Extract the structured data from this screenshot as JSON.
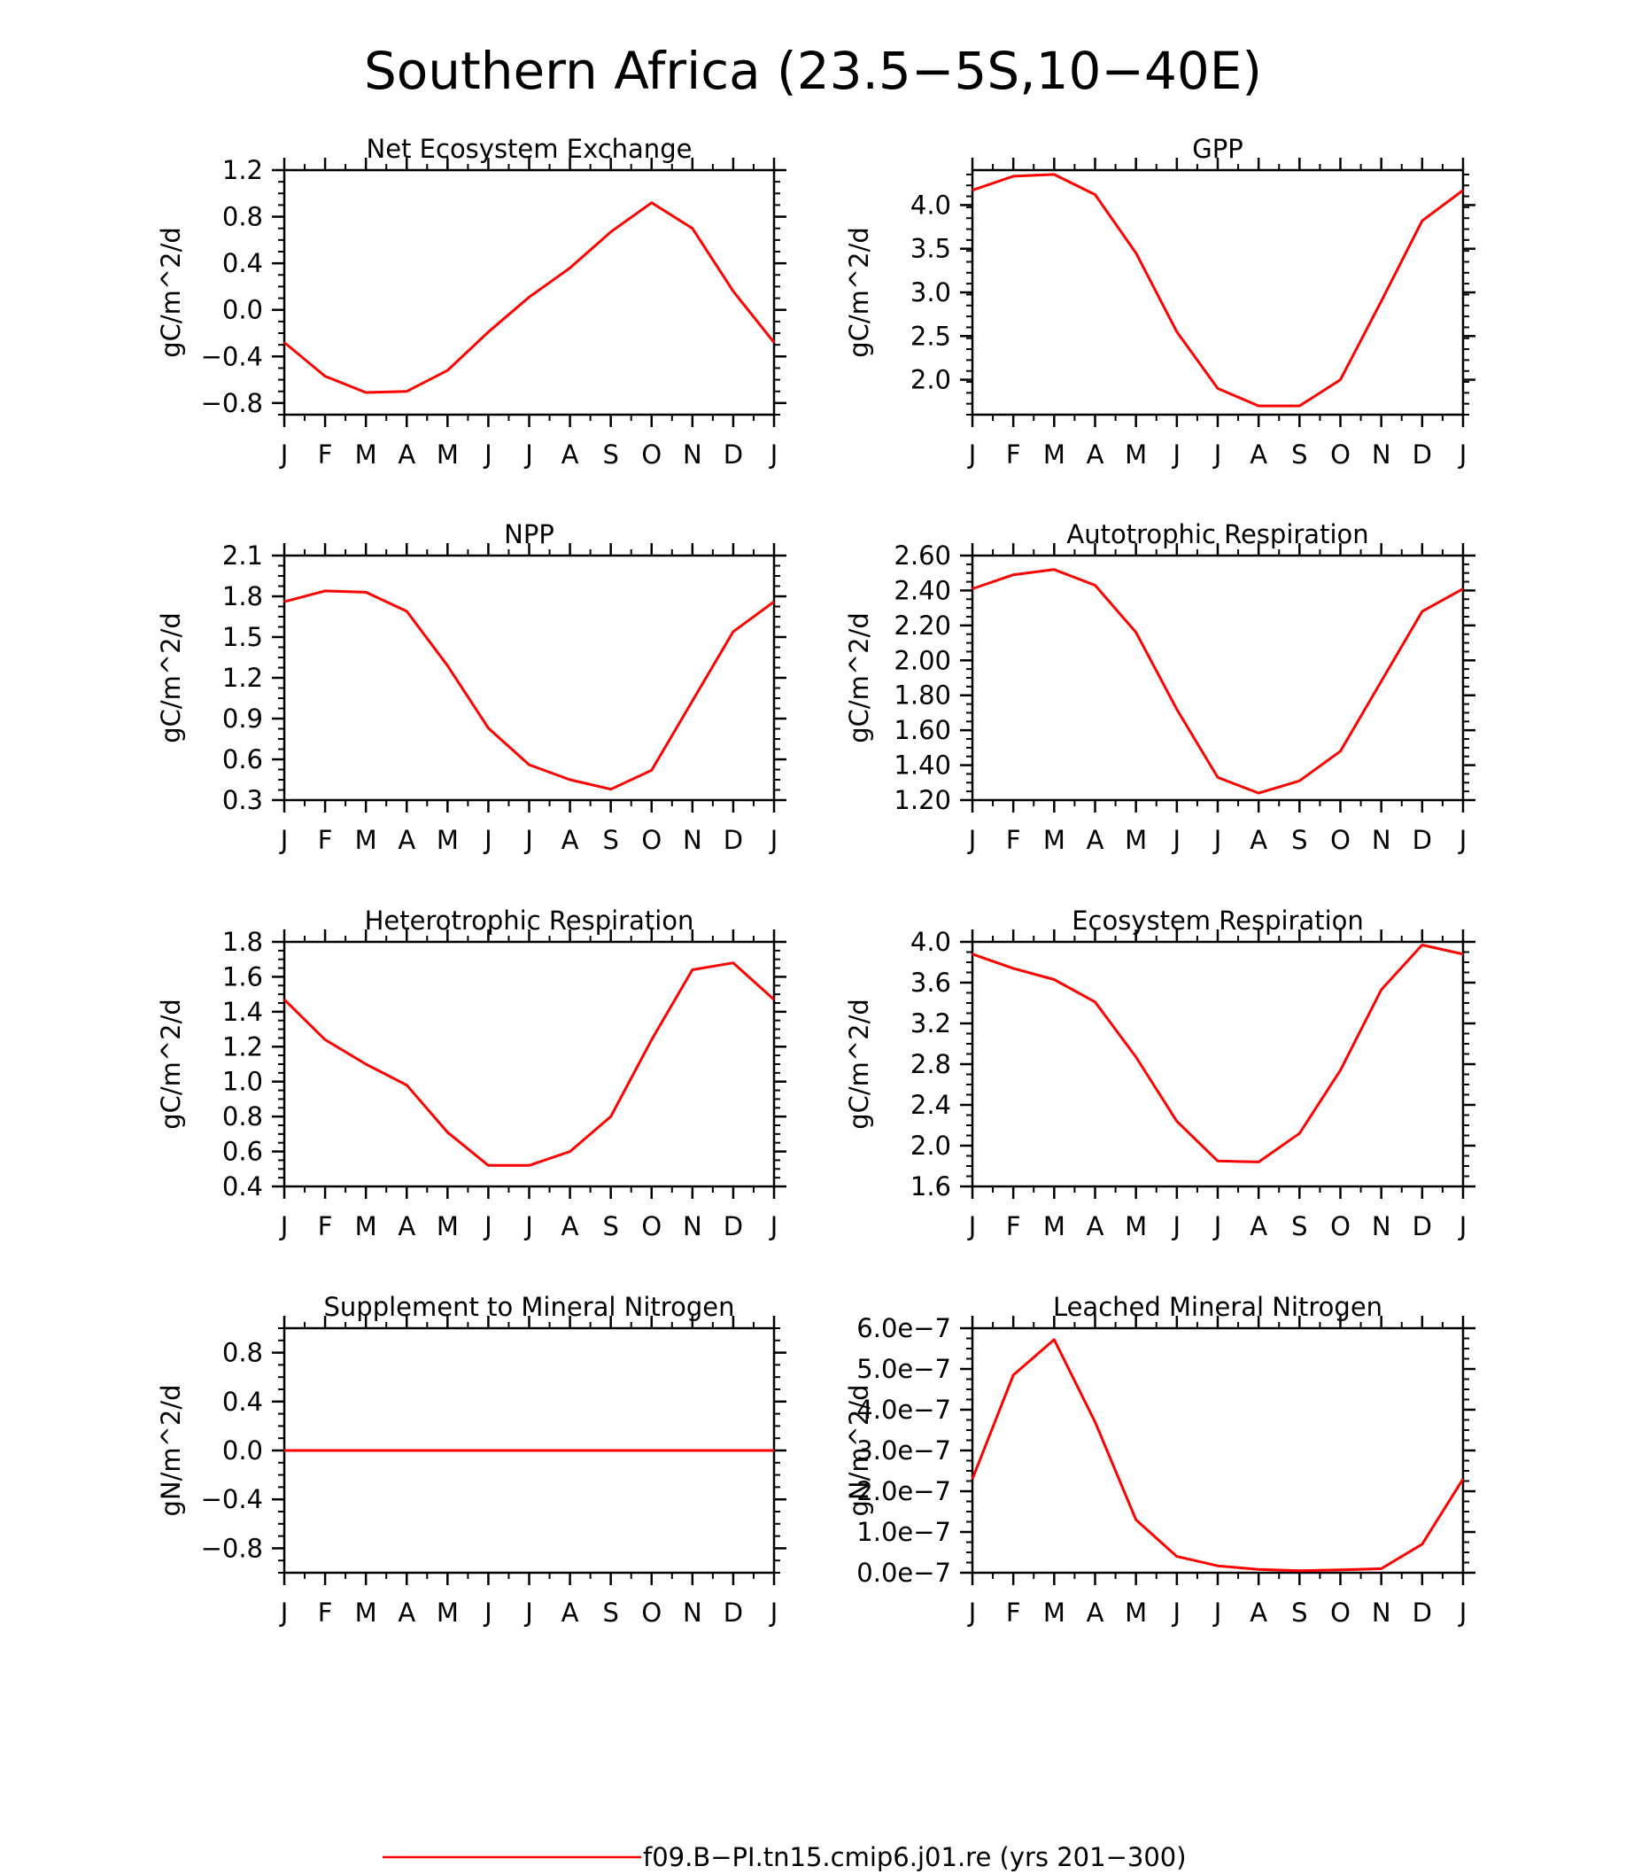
{
  "title": "Southern Africa (23.5−5S,10−40E)",
  "legend": {
    "label": "f09.B−PI.tn15.cmip6.j01.re (yrs 201−300)",
    "color": "#ff0000"
  },
  "month_labels": [
    "J",
    "F",
    "M",
    "A",
    "M",
    "J",
    "J",
    "A",
    "S",
    "O",
    "N",
    "D",
    "J"
  ],
  "chart_data": [
    {
      "type": "line",
      "title": "Net Ecosystem Exchange",
      "ylabel": "gC/m^2/d",
      "ylim": [
        -0.9,
        1.2
      ],
      "yticks": [
        1.2,
        0.8,
        0.4,
        0.0,
        -0.4,
        -0.8
      ],
      "yticklabels": [
        "1.2",
        "0.8",
        "0.4",
        "0.0",
        "−0.4",
        "−0.8"
      ],
      "values": [
        -0.28,
        -0.57,
        -0.71,
        -0.7,
        -0.52,
        -0.19,
        0.11,
        0.36,
        0.67,
        0.92,
        0.7,
        0.16,
        -0.28
      ]
    },
    {
      "type": "line",
      "title": "GPP",
      "ylabel": "gC/m^2/d",
      "ylim": [
        1.6,
        4.4
      ],
      "yticks": [
        4.0,
        3.5,
        3.0,
        2.5,
        2.0
      ],
      "yticklabels": [
        "4.0",
        "3.5",
        "3.0",
        "2.5",
        "2.0"
      ],
      "values": [
        4.17,
        4.33,
        4.35,
        4.12,
        3.45,
        2.55,
        1.9,
        1.7,
        1.7,
        2.0,
        2.9,
        3.82,
        4.17
      ]
    },
    {
      "type": "line",
      "title": "NPP",
      "ylabel": "gC/m^2/d",
      "ylim": [
        0.3,
        2.1
      ],
      "yticks": [
        2.1,
        1.8,
        1.5,
        1.2,
        0.9,
        0.6,
        0.3
      ],
      "yticklabels": [
        "2.1",
        "1.8",
        "1.5",
        "1.2",
        "0.9",
        "0.6",
        "0.3"
      ],
      "values": [
        1.76,
        1.84,
        1.83,
        1.69,
        1.29,
        0.83,
        0.56,
        0.45,
        0.38,
        0.52,
        1.03,
        1.54,
        1.76
      ]
    },
    {
      "type": "line",
      "title": "Autotrophic Respiration",
      "ylabel": "gC/m^2/d",
      "ylim": [
        1.2,
        2.6
      ],
      "yticks": [
        2.6,
        2.4,
        2.2,
        2.0,
        1.8,
        1.6,
        1.4,
        1.2
      ],
      "yticklabels": [
        "2.60",
        "2.40",
        "2.20",
        "2.00",
        "1.80",
        "1.60",
        "1.40",
        "1.20"
      ],
      "values": [
        2.41,
        2.49,
        2.52,
        2.43,
        2.16,
        1.72,
        1.33,
        1.24,
        1.31,
        1.48,
        1.88,
        2.28,
        2.41
      ]
    },
    {
      "type": "line",
      "title": "Heterotrophic Respiration",
      "ylabel": "gC/m^2/d",
      "ylim": [
        0.4,
        1.8
      ],
      "yticks": [
        1.8,
        1.6,
        1.4,
        1.2,
        1.0,
        0.8,
        0.6,
        0.4
      ],
      "yticklabels": [
        "1.8",
        "1.6",
        "1.4",
        "1.2",
        "1.0",
        "0.8",
        "0.6",
        "0.4"
      ],
      "values": [
        1.47,
        1.24,
        1.1,
        0.98,
        0.71,
        0.52,
        0.52,
        0.6,
        0.8,
        1.24,
        1.64,
        1.68,
        1.47
      ]
    },
    {
      "type": "line",
      "title": "Ecosystem Respiration",
      "ylabel": "gC/m^2/d",
      "ylim": [
        1.6,
        4.0
      ],
      "yticks": [
        4.0,
        3.6,
        3.2,
        2.8,
        2.4,
        2.0,
        1.6
      ],
      "yticklabels": [
        "4.0",
        "3.6",
        "3.2",
        "2.8",
        "2.4",
        "2.0",
        "1.6"
      ],
      "values": [
        3.88,
        3.74,
        3.63,
        3.41,
        2.87,
        2.24,
        1.85,
        1.84,
        2.12,
        2.74,
        3.53,
        3.97,
        3.88
      ]
    },
    {
      "type": "line",
      "title": "Supplement to Mineral Nitrogen",
      "ylabel": "gN/m^2/d",
      "ylim": [
        -1.0,
        1.0
      ],
      "yticks": [
        0.8,
        0.4,
        0.0,
        -0.4,
        -0.8
      ],
      "yticklabels": [
        "0.8",
        "0.4",
        "0.0",
        "−0.4",
        "−0.8"
      ],
      "values": [
        0,
        0,
        0,
        0,
        0,
        0,
        0,
        0,
        0,
        0,
        0,
        0,
        0
      ]
    },
    {
      "type": "line",
      "title": "Leached Mineral Nitrogen",
      "ylabel": "gN/m^2/d",
      "ylim": [
        0,
        6e-07
      ],
      "yticks": [
        6e-07,
        5e-07,
        4e-07,
        3e-07,
        2e-07,
        1e-07,
        0
      ],
      "yticklabels": [
        "6.0e−7",
        "5.0e−7",
        "4.0e−7",
        "3.0e−7",
        "2.0e−7",
        "1.0e−7",
        "0.0e−7"
      ],
      "values": [
        2.3e-07,
        4.85e-07,
        5.72e-07,
        3.7e-07,
        1.3e-07,
        4e-08,
        1.7e-08,
        8e-09,
        5e-09,
        7e-09,
        1e-08,
        7e-08,
        2.3e-07
      ]
    }
  ]
}
